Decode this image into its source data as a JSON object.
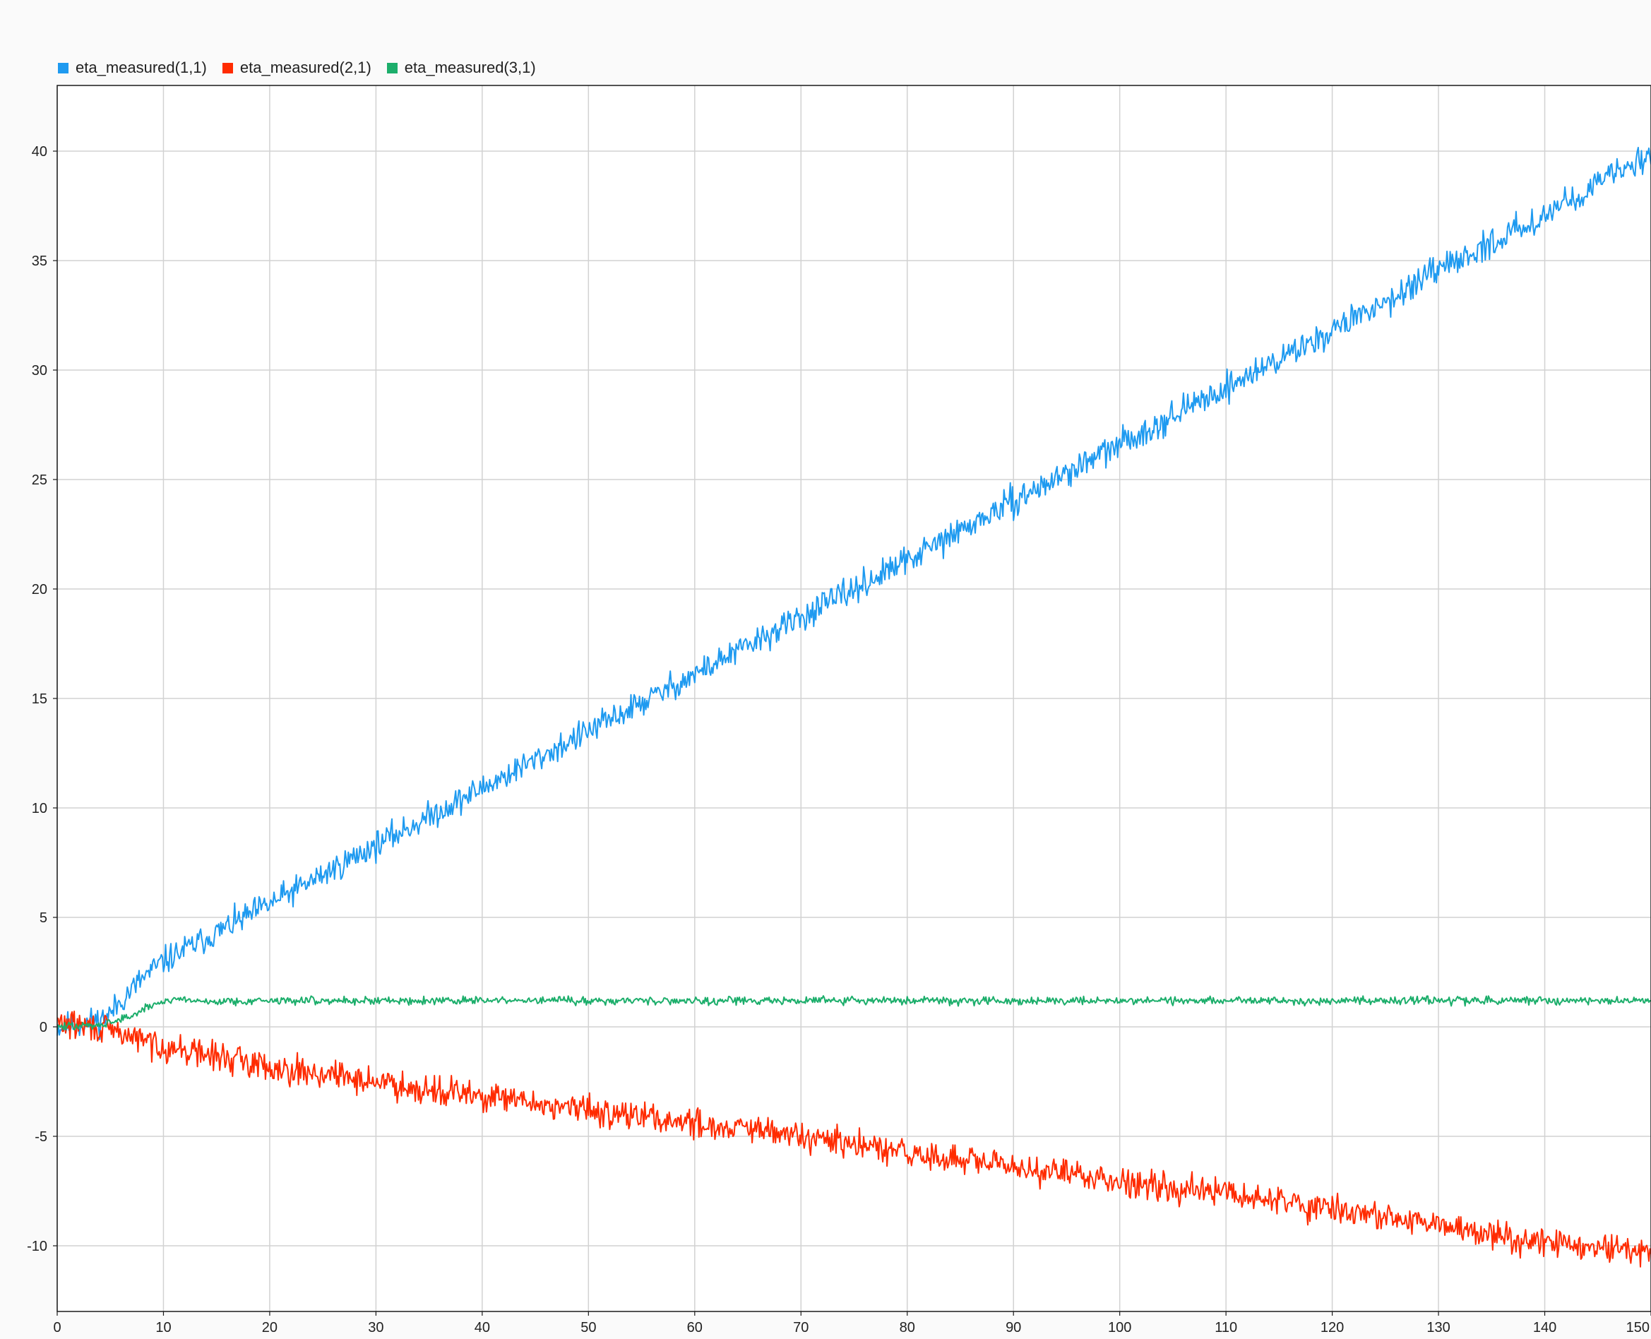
{
  "chart_data": {
    "type": "line",
    "title": "",
    "xlabel": "",
    "ylabel": "",
    "xlim": [
      0,
      150
    ],
    "ylim": [
      -13,
      43
    ],
    "grid": true,
    "legend_position": "top-left",
    "x_ticks": [
      0,
      10,
      20,
      30,
      40,
      50,
      60,
      70,
      80,
      90,
      100,
      110,
      120,
      130,
      140,
      150
    ],
    "y_ticks": [
      -10,
      -5,
      0,
      5,
      10,
      15,
      20,
      25,
      30,
      35,
      40
    ],
    "series": [
      {
        "name": "eta_measured(1,1)",
        "color": "#1e9af0",
        "x": [
          0,
          2,
          4,
          5,
          6,
          8,
          10,
          15,
          20,
          30,
          40,
          50,
          60,
          70,
          77,
          80,
          90,
          100,
          110,
          120,
          130,
          140,
          150
        ],
        "y": [
          0,
          0.1,
          0.3,
          0.6,
          1.2,
          2.2,
          3.0,
          4.3,
          5.6,
          8.3,
          10.9,
          13.5,
          16.1,
          18.7,
          20.5,
          21.3,
          24.0,
          26.6,
          29.2,
          31.8,
          34.5,
          37.1,
          39.9
        ],
        "noise": 0.32,
        "noise_seed": 11
      },
      {
        "name": "eta_measured(2,1)",
        "color": "#ff2b00",
        "x": [
          0,
          3,
          6,
          8,
          10,
          20,
          30,
          40,
          50,
          60,
          70,
          80,
          90,
          100,
          110,
          120,
          130,
          140,
          150
        ],
        "y": [
          0.2,
          0.0,
          -0.3,
          -0.6,
          -0.9,
          -1.8,
          -2.5,
          -3.2,
          -3.8,
          -4.4,
          -5.0,
          -5.8,
          -6.4,
          -7.0,
          -7.6,
          -8.3,
          -9.1,
          -9.8,
          -10.4
        ],
        "noise": 0.33,
        "noise_seed": 29
      },
      {
        "name": "eta_measured(3,1)",
        "color": "#1cae6b",
        "x": [
          0,
          3,
          5,
          7,
          9,
          11,
          14,
          20,
          50,
          100,
          150
        ],
        "y": [
          0,
          0.05,
          0.2,
          0.5,
          1.0,
          1.3,
          1.15,
          1.2,
          1.2,
          1.2,
          1.2
        ],
        "noise": 0.09,
        "noise_seed": 47
      }
    ]
  }
}
